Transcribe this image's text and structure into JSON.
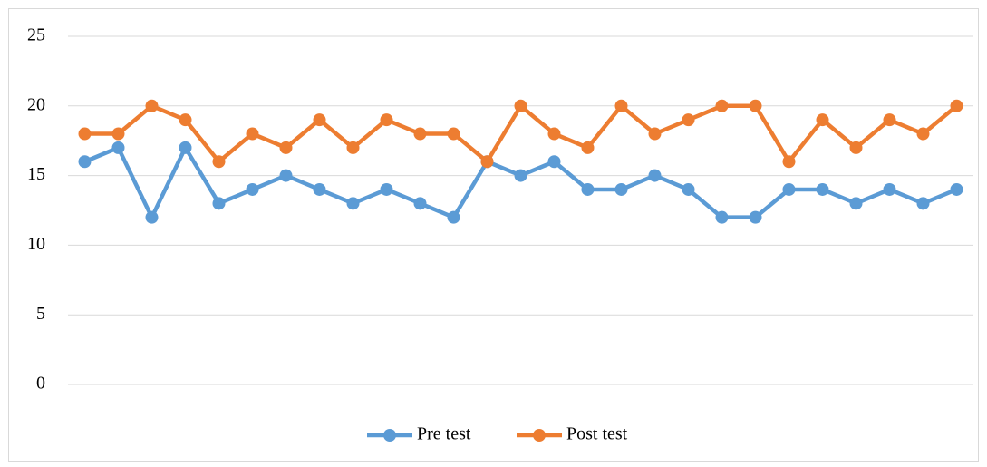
{
  "chart_data": {
    "type": "line",
    "categories": [
      null,
      null,
      null,
      null,
      null,
      null,
      null,
      null,
      null,
      null,
      null,
      null,
      null,
      null,
      null,
      null,
      null,
      null,
      null,
      null,
      null,
      null,
      null,
      null,
      null,
      null,
      null
    ],
    "series": [
      {
        "name": "Pre test",
        "color": "#5b9bd5",
        "values": [
          16,
          17,
          12,
          17,
          13,
          14,
          15,
          14,
          13,
          14,
          13,
          12,
          16,
          15,
          16,
          14,
          14,
          15,
          14,
          12,
          12,
          14,
          14,
          13,
          14,
          13,
          14
        ]
      },
      {
        "name": "Post test",
        "color": "#ed7d31",
        "values": [
          18,
          18,
          20,
          19,
          16,
          18,
          17,
          19,
          17,
          19,
          18,
          18,
          16,
          20,
          18,
          17,
          20,
          18,
          19,
          20,
          20,
          16,
          19,
          17,
          19,
          18,
          20
        ]
      }
    ],
    "ylim": [
      0,
      25
    ],
    "yticks": [
      0,
      5,
      10,
      15,
      20,
      25
    ],
    "grid": true,
    "legend": "bottom"
  }
}
